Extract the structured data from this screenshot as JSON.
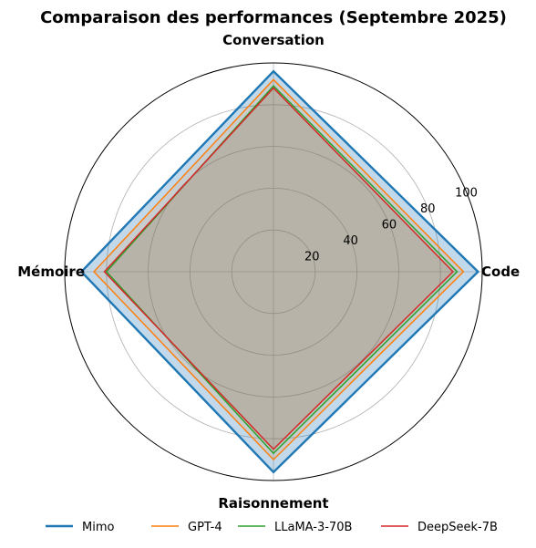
{
  "chart_data": {
    "type": "radar",
    "title": "Comparaison des performances (Septembre 2025)",
    "axes": [
      "Conversation",
      "Code",
      "Raisonnement",
      "Mémoire"
    ],
    "rlim": [
      0,
      100
    ],
    "rticks": [
      20,
      40,
      60,
      80,
      100
    ],
    "rtick_labels": [
      "20",
      "40",
      "60",
      "80",
      "100"
    ],
    "grid": true,
    "legend_position": "bottom",
    "series": [
      {
        "name": "Mimo",
        "values": [
          96,
          98,
          96,
          92
        ],
        "color": "#1f77b4",
        "fill": "#1f77b4",
        "fill_opacity": 0.28,
        "stroke_width": 2.4
      },
      {
        "name": "GPT-4",
        "values": [
          92,
          91,
          90,
          86
        ],
        "color": "#ff7f0e",
        "fill": "#ff7f0e",
        "fill_opacity": 0.12,
        "stroke_width": 1.5
      },
      {
        "name": "LLaMA-3-70B",
        "values": [
          89,
          88,
          87,
          80
        ],
        "color": "#2ca02c",
        "fill": "#2ca02c",
        "fill_opacity": 0.12,
        "stroke_width": 1.5
      },
      {
        "name": "DeepSeek-7B",
        "values": [
          88,
          86,
          85,
          81
        ],
        "color": "#d62728",
        "fill": "#d62728",
        "fill_opacity": 0.12,
        "stroke_width": 1.5
      }
    ]
  }
}
